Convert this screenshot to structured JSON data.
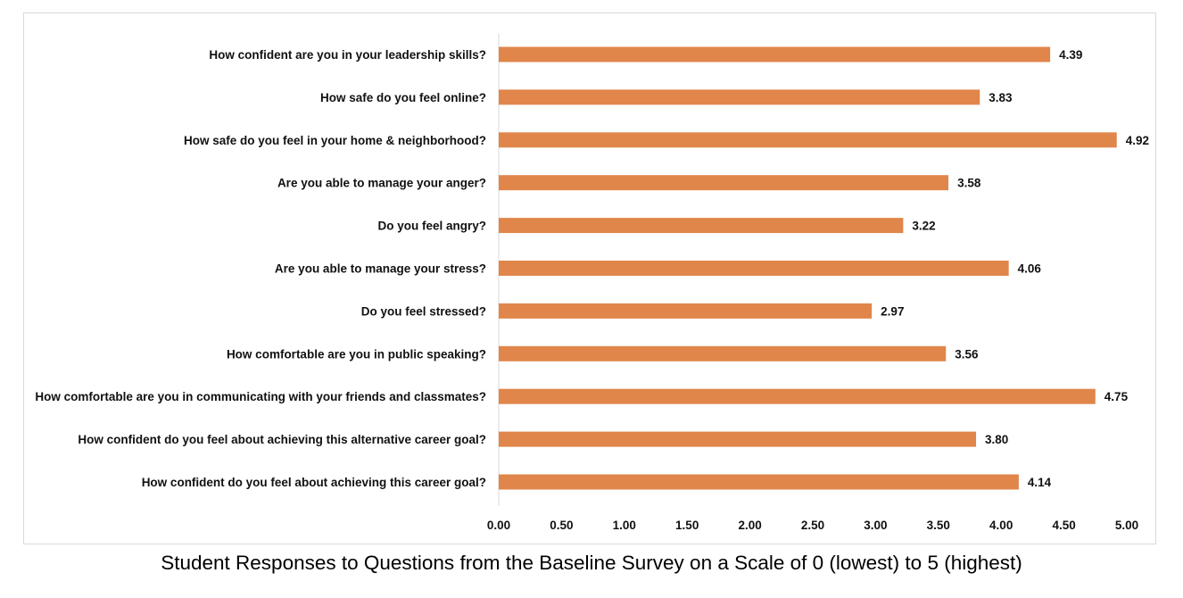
{
  "caption": "Student Responses to Questions from the Baseline Survey on a Scale of 0 (lowest) to 5 (highest)",
  "chart_data": {
    "type": "bar",
    "orientation": "horizontal",
    "title": "",
    "xlabel": "",
    "ylabel": "",
    "xlim": [
      0,
      5
    ],
    "x_ticks": [
      "0.00",
      "0.50",
      "1.00",
      "1.50",
      "2.00",
      "2.50",
      "3.00",
      "3.50",
      "4.00",
      "4.50",
      "5.00"
    ],
    "grid": false,
    "legend": "none",
    "bar_color": "#e0864a",
    "categories": [
      "How confident are you in your leadership skills?",
      "How safe do you feel online?",
      "How safe do you feel in your home & neighborhood?",
      "Are you able to manage your anger?",
      "Do you feel angry?",
      "Are you able to manage your stress?",
      "Do you feel stressed?",
      "How comfortable are you in public speaking?",
      "How comfortable are you in communicating with your friends and classmates?",
      "How confident do you feel about achieving this alternative career goal?",
      "How confident do you feel about achieving this career goal?"
    ],
    "values": [
      4.39,
      3.83,
      4.92,
      3.58,
      3.22,
      4.06,
      2.97,
      3.56,
      4.75,
      3.8,
      4.14
    ],
    "value_labels": [
      "4.39",
      "3.83",
      "4.92",
      "3.58",
      "3.22",
      "4.06",
      "2.97",
      "3.56",
      "4.75",
      "3.80",
      "4.14"
    ]
  }
}
